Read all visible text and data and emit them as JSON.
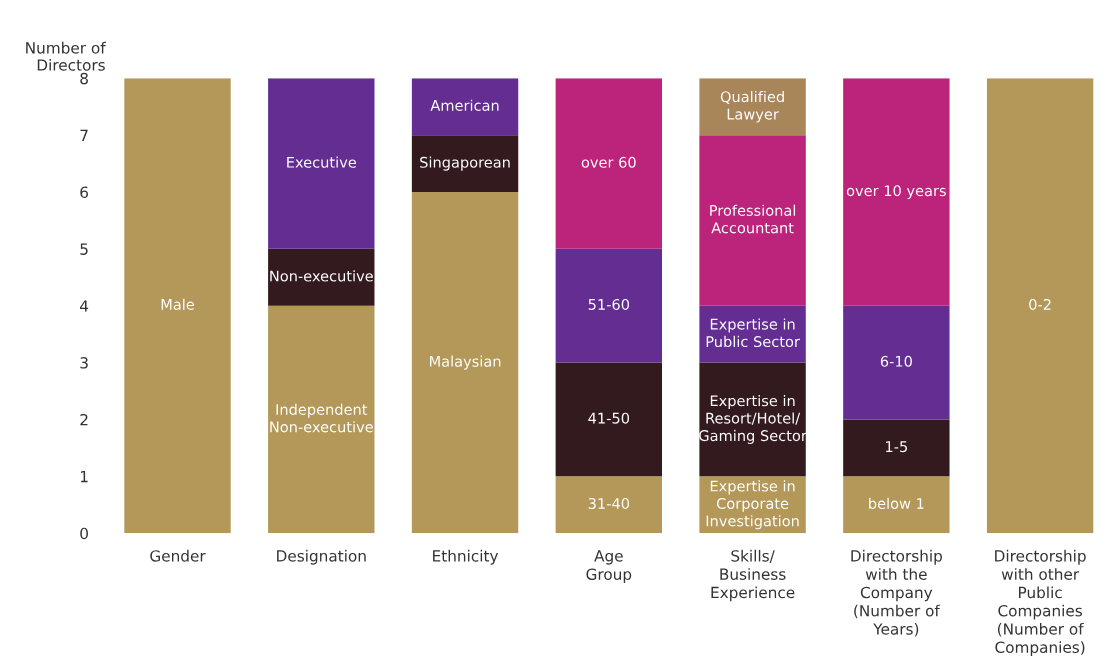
{
  "chart_data": {
    "type": "bar",
    "stacked": true,
    "ylabel": "Number of\nDirectors",
    "ylim": [
      0,
      8
    ],
    "yticks": [
      0,
      1,
      2,
      3,
      4,
      5,
      6,
      7,
      8
    ],
    "grid": false,
    "legend": false,
    "categories": [
      "Gender",
      "Designation",
      "Ethnicity",
      "Age\nGroup",
      "Skills/\nBusiness\nExperience",
      "Directorship\nwith the\nCompany\n(Number of\nYears)",
      "Directorship\nwith other\nPublic\nCompanies\n(Number of\nCompanies)"
    ],
    "series": [
      {
        "name": "Male",
        "color": "#b39859",
        "values": [
          8,
          null,
          null,
          null,
          null,
          null,
          null
        ]
      },
      {
        "name": "Independent\nNon-executive",
        "color": "#b39859",
        "values": [
          null,
          4,
          null,
          null,
          null,
          null,
          null
        ]
      },
      {
        "name": "Non-executive",
        "color": "#331a1f",
        "values": [
          null,
          1,
          null,
          null,
          null,
          null,
          null
        ]
      },
      {
        "name": "Executive",
        "color": "#632d91",
        "values": [
          null,
          3,
          null,
          null,
          null,
          null,
          null
        ]
      },
      {
        "name": "Malaysian",
        "color": "#b39859",
        "values": [
          null,
          null,
          6,
          null,
          null,
          null,
          null
        ]
      },
      {
        "name": "Singaporean",
        "color": "#331a1f",
        "values": [
          null,
          null,
          1,
          null,
          null,
          null,
          null
        ]
      },
      {
        "name": "American",
        "color": "#632d91",
        "values": [
          null,
          null,
          1,
          null,
          null,
          null,
          null
        ]
      },
      {
        "name": "31-40",
        "color": "#b39859",
        "values": [
          null,
          null,
          null,
          1,
          null,
          null,
          null
        ]
      },
      {
        "name": "41-50",
        "color": "#331a1f",
        "values": [
          null,
          null,
          null,
          2,
          null,
          null,
          null
        ]
      },
      {
        "name": "51-60",
        "color": "#632d91",
        "values": [
          null,
          null,
          null,
          2,
          null,
          null,
          null
        ]
      },
      {
        "name": "over 60",
        "color": "#bc237a",
        "values": [
          null,
          null,
          null,
          3,
          null,
          null,
          null
        ]
      },
      {
        "name": "Expertise in\nCorporate\nInvestigation",
        "color": "#b39859",
        "values": [
          null,
          null,
          null,
          null,
          1,
          null,
          null
        ]
      },
      {
        "name": "Expertise in\nResort/Hotel/\nGaming Sector",
        "color": "#331a1f",
        "values": [
          null,
          null,
          null,
          null,
          2,
          null,
          null
        ]
      },
      {
        "name": "Expertise in\nPublic Sector",
        "color": "#632d91",
        "values": [
          null,
          null,
          null,
          null,
          1,
          null,
          null
        ]
      },
      {
        "name": "Professional\nAccountant",
        "color": "#bc237a",
        "values": [
          null,
          null,
          null,
          null,
          3,
          null,
          null
        ]
      },
      {
        "name": "Qualified\nLawyer",
        "color": "#a8865a",
        "values": [
          null,
          null,
          null,
          null,
          1,
          null,
          null
        ]
      },
      {
        "name": "below 1",
        "color": "#b39859",
        "values": [
          null,
          null,
          null,
          null,
          null,
          1,
          null
        ]
      },
      {
        "name": "1-5",
        "color": "#331a1f",
        "values": [
          null,
          null,
          null,
          null,
          null,
          1,
          null
        ]
      },
      {
        "name": "6-10",
        "color": "#632d91",
        "values": [
          null,
          null,
          null,
          null,
          null,
          2,
          null
        ]
      },
      {
        "name": "over 10 years",
        "color": "#bc237a",
        "values": [
          null,
          null,
          null,
          null,
          null,
          4,
          null
        ]
      },
      {
        "name": "0-2",
        "color": "#b39859",
        "values": [
          null,
          null,
          null,
          null,
          null,
          null,
          8
        ]
      }
    ]
  }
}
